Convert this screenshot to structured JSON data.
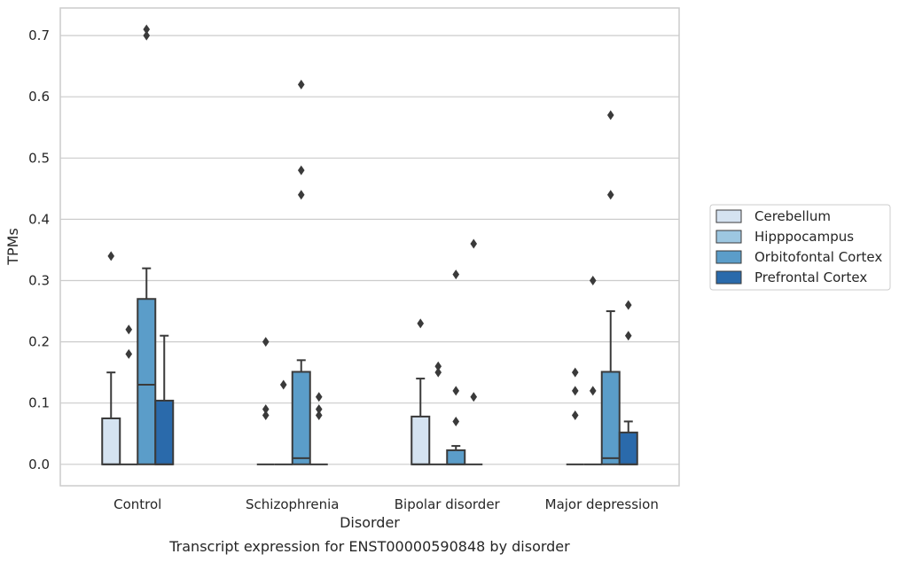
{
  "caption": "Transcript expression for ENST00000590848 by disorder",
  "chart_data": {
    "type": "box",
    "xlabel": "Disorder",
    "ylabel": "TPMs",
    "ylim": [
      -0.035,
      0.745
    ],
    "yticks": [
      "0.0",
      "0.1",
      "0.2",
      "0.3",
      "0.4",
      "0.5",
      "0.6",
      "0.7"
    ],
    "grid": "horizontal",
    "legend_position": "right",
    "categories": [
      "Control",
      "Schizophrenia",
      "Bipolar disorder",
      "Major depression"
    ],
    "series": [
      {
        "name": "Cerebellum",
        "color": "#d5e3f1",
        "boxes": [
          {
            "q1": 0.0,
            "median": 0.0,
            "q3": 0.075,
            "whisker_low": 0.0,
            "whisker_high": 0.15,
            "outliers": [
              0.34
            ]
          },
          {
            "q1": 0.0,
            "median": 0.0,
            "q3": 0.0,
            "whisker_low": 0.0,
            "whisker_high": 0.0,
            "outliers": [
              0.08,
              0.09,
              0.2
            ]
          },
          {
            "q1": 0.0,
            "median": 0.0,
            "q3": 0.078,
            "whisker_low": 0.0,
            "whisker_high": 0.14,
            "outliers": [
              0.23
            ]
          },
          {
            "q1": 0.0,
            "median": 0.0,
            "q3": 0.0,
            "whisker_low": 0.0,
            "whisker_high": 0.0,
            "outliers": [
              0.08,
              0.12,
              0.15
            ]
          }
        ]
      },
      {
        "name": "Hipppocampus",
        "color": "#9dc7e1",
        "boxes": [
          {
            "q1": 0.0,
            "median": 0.0,
            "q3": 0.0,
            "whisker_low": 0.0,
            "whisker_high": 0.0,
            "outliers": [
              0.18,
              0.22
            ]
          },
          {
            "q1": 0.0,
            "median": 0.0,
            "q3": 0.0,
            "whisker_low": 0.0,
            "whisker_high": 0.0,
            "outliers": [
              0.13
            ]
          },
          {
            "q1": 0.0,
            "median": 0.0,
            "q3": 0.0,
            "whisker_low": 0.0,
            "whisker_high": 0.0,
            "outliers": [
              0.15,
              0.16
            ]
          },
          {
            "q1": 0.0,
            "median": 0.0,
            "q3": 0.0,
            "whisker_low": 0.0,
            "whisker_high": 0.0,
            "outliers": [
              0.12,
              0.3
            ]
          }
        ]
      },
      {
        "name": "Orbitofontal Cortex",
        "color": "#5b9dc9",
        "boxes": [
          {
            "q1": 0.0,
            "median": 0.13,
            "q3": 0.27,
            "whisker_low": 0.0,
            "whisker_high": 0.32,
            "outliers": [
              0.7,
              0.71
            ]
          },
          {
            "q1": 0.0,
            "median": 0.01,
            "q3": 0.151,
            "whisker_low": 0.0,
            "whisker_high": 0.17,
            "outliers": [
              0.44,
              0.48,
              0.62
            ]
          },
          {
            "q1": 0.0,
            "median": 0.0,
            "q3": 0.023,
            "whisker_low": 0.0,
            "whisker_high": 0.03,
            "outliers": [
              0.07,
              0.12,
              0.31
            ]
          },
          {
            "q1": 0.0,
            "median": 0.01,
            "q3": 0.151,
            "whisker_low": 0.0,
            "whisker_high": 0.25,
            "outliers": [
              0.44,
              0.57
            ]
          }
        ]
      },
      {
        "name": "Prefrontal Cortex",
        "color": "#2a6aab",
        "boxes": [
          {
            "q1": 0.0,
            "median": 0.0,
            "q3": 0.104,
            "whisker_low": 0.0,
            "whisker_high": 0.21,
            "outliers": []
          },
          {
            "q1": 0.0,
            "median": 0.0,
            "q3": 0.0,
            "whisker_low": 0.0,
            "whisker_high": 0.0,
            "outliers": [
              0.08,
              0.09,
              0.11
            ]
          },
          {
            "q1": 0.0,
            "median": 0.0,
            "q3": 0.0,
            "whisker_low": 0.0,
            "whisker_high": 0.0,
            "outliers": [
              0.11,
              0.36
            ]
          },
          {
            "q1": 0.0,
            "median": 0.0,
            "q3": 0.052,
            "whisker_low": 0.0,
            "whisker_high": 0.07,
            "outliers": [
              0.21,
              0.26
            ]
          }
        ]
      }
    ]
  }
}
